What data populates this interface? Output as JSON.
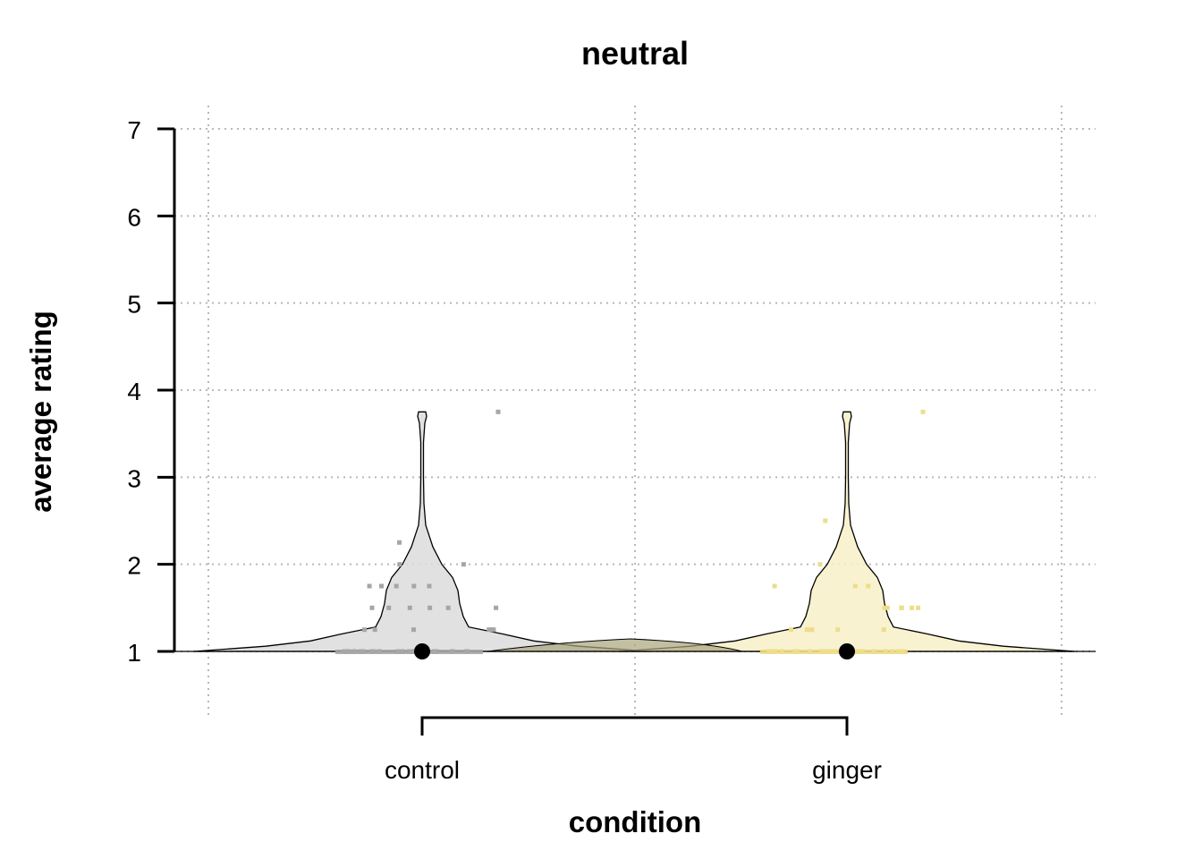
{
  "chart_data": {
    "type": "violin",
    "title": "neutral",
    "xlabel": "condition",
    "ylabel": "average rating",
    "categories": [
      "control",
      "ginger"
    ],
    "ylim": [
      1,
      7
    ],
    "yticks": [
      1,
      2,
      3,
      4,
      5,
      6,
      7
    ],
    "grid": true,
    "colors": {
      "control": "#a6a6a6",
      "control_fill": "#dcdcdc",
      "ginger": "#eedd88",
      "ginger_fill": "#f7f0c8",
      "overlap_fill": "#a9a47a",
      "median": "#000000"
    },
    "series": [
      {
        "category": "control",
        "median": 1,
        "points": [
          1,
          1,
          1,
          1,
          1,
          1,
          1,
          1,
          1,
          1,
          1,
          1,
          1,
          1,
          1,
          1,
          1,
          1,
          1,
          1,
          1,
          1,
          1.25,
          1.25,
          1.25,
          1.25,
          1.25,
          1.25,
          1.5,
          1.5,
          1.5,
          1.5,
          1.5,
          1.5,
          1.75,
          1.75,
          1.75,
          1.75,
          1.75,
          2,
          2,
          2.25,
          3.75
        ]
      },
      {
        "category": "ginger",
        "median": 1,
        "points": [
          1,
          1,
          1,
          1,
          1,
          1,
          1,
          1,
          1,
          1,
          1,
          1,
          1,
          1,
          1,
          1,
          1,
          1,
          1,
          1,
          1,
          1,
          1,
          1,
          1,
          1.25,
          1.25,
          1.25,
          1.25,
          1.25,
          1.25,
          1.5,
          1.5,
          1.5,
          1.5,
          1.5,
          1.5,
          1.75,
          1.75,
          1.75,
          2,
          2.5,
          3.75
        ]
      }
    ]
  }
}
